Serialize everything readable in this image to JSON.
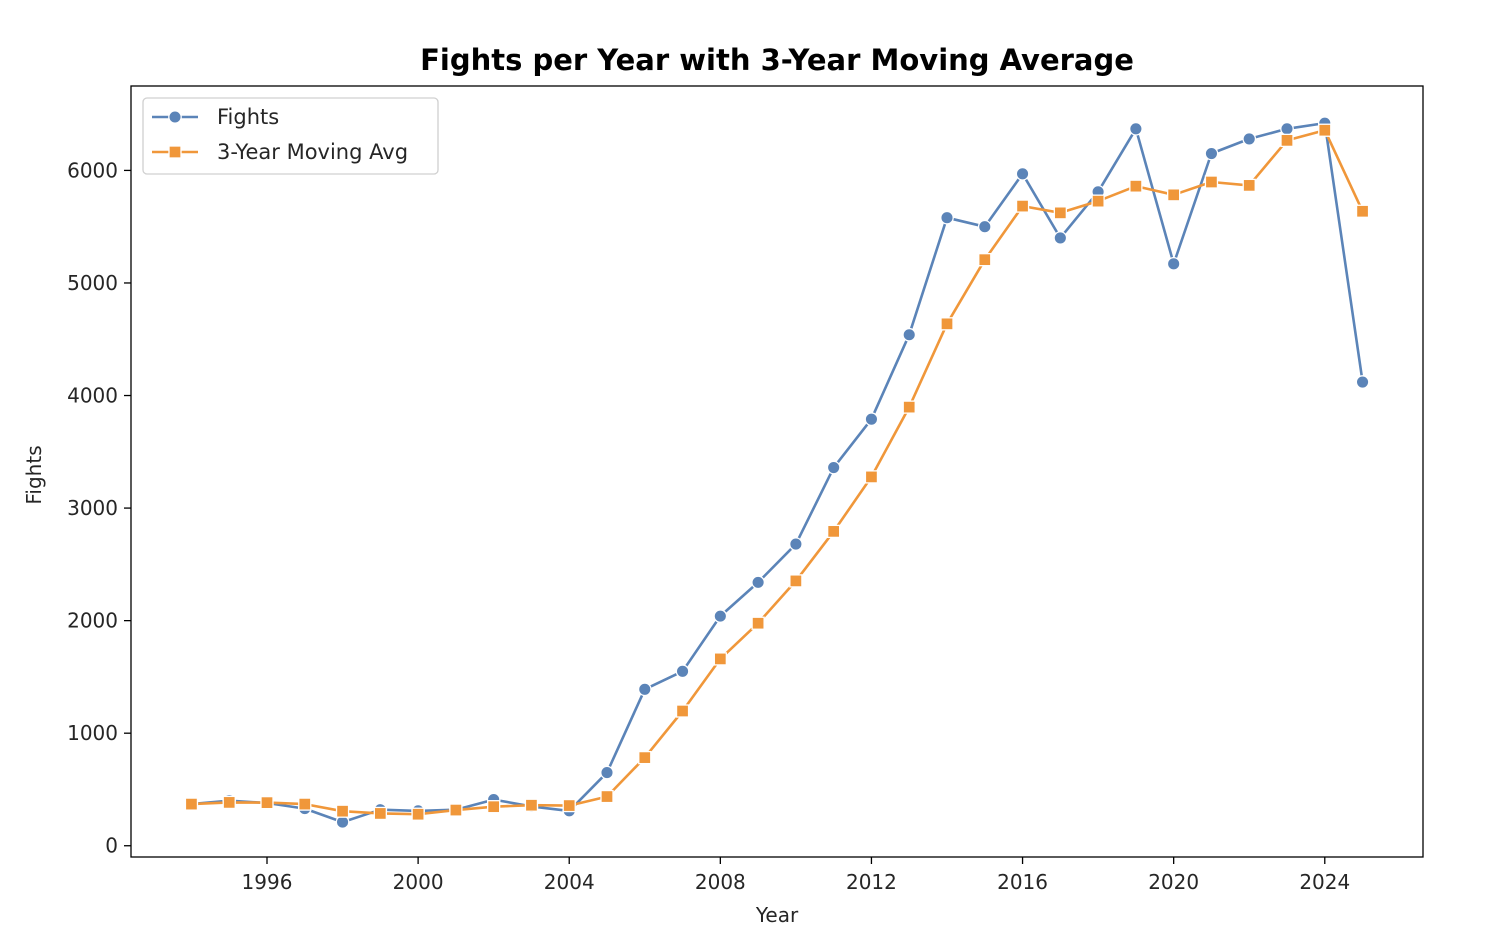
{
  "chart_data": {
    "type": "line",
    "title": "Fights per Year with 3-Year Moving Average",
    "xlabel": "Year",
    "ylabel": "Fights",
    "x": [
      1994,
      1995,
      1996,
      1997,
      1998,
      1999,
      2000,
      2001,
      2002,
      2003,
      2004,
      2005,
      2006,
      2007,
      2008,
      2009,
      2010,
      2011,
      2012,
      2013,
      2014,
      2015,
      2016,
      2017,
      2018,
      2019,
      2020,
      2021,
      2022,
      2023,
      2024,
      2025
    ],
    "series": [
      {
        "name": "Fights",
        "color": "#5b84b8",
        "marker": "circle",
        "values": [
          370,
          400,
          380,
          330,
          210,
          320,
          310,
          320,
          410,
          350,
          310,
          650,
          1390,
          1550,
          2040,
          2340,
          2680,
          3360,
          3790,
          4540,
          5580,
          5500,
          5970,
          5400,
          5810,
          6370,
          5170,
          6150,
          6280,
          6370,
          6420,
          4120
        ]
      },
      {
        "name": "3-Year Moving Avg",
        "color": "#f0973a",
        "marker": "square",
        "values": [
          370,
          385,
          383,
          370,
          307,
          287,
          280,
          317,
          347,
          360,
          357,
          437,
          783,
          1197,
          1660,
          1977,
          2353,
          2793,
          3277,
          3897,
          4637,
          5207,
          5683,
          5623,
          5727,
          5860,
          5783,
          5897,
          5867,
          6267,
          6357,
          5637
        ]
      }
    ],
    "xticks": [
      1996,
      2000,
      2004,
      2008,
      2012,
      2016,
      2020,
      2024
    ],
    "yticks": [
      0,
      1000,
      2000,
      3000,
      4000,
      5000,
      6000
    ],
    "xlim": [
      1992.4,
      2026.6
    ],
    "ylim": [
      -100,
      6750
    ],
    "legend_position": "upper-left",
    "grid": false
  }
}
